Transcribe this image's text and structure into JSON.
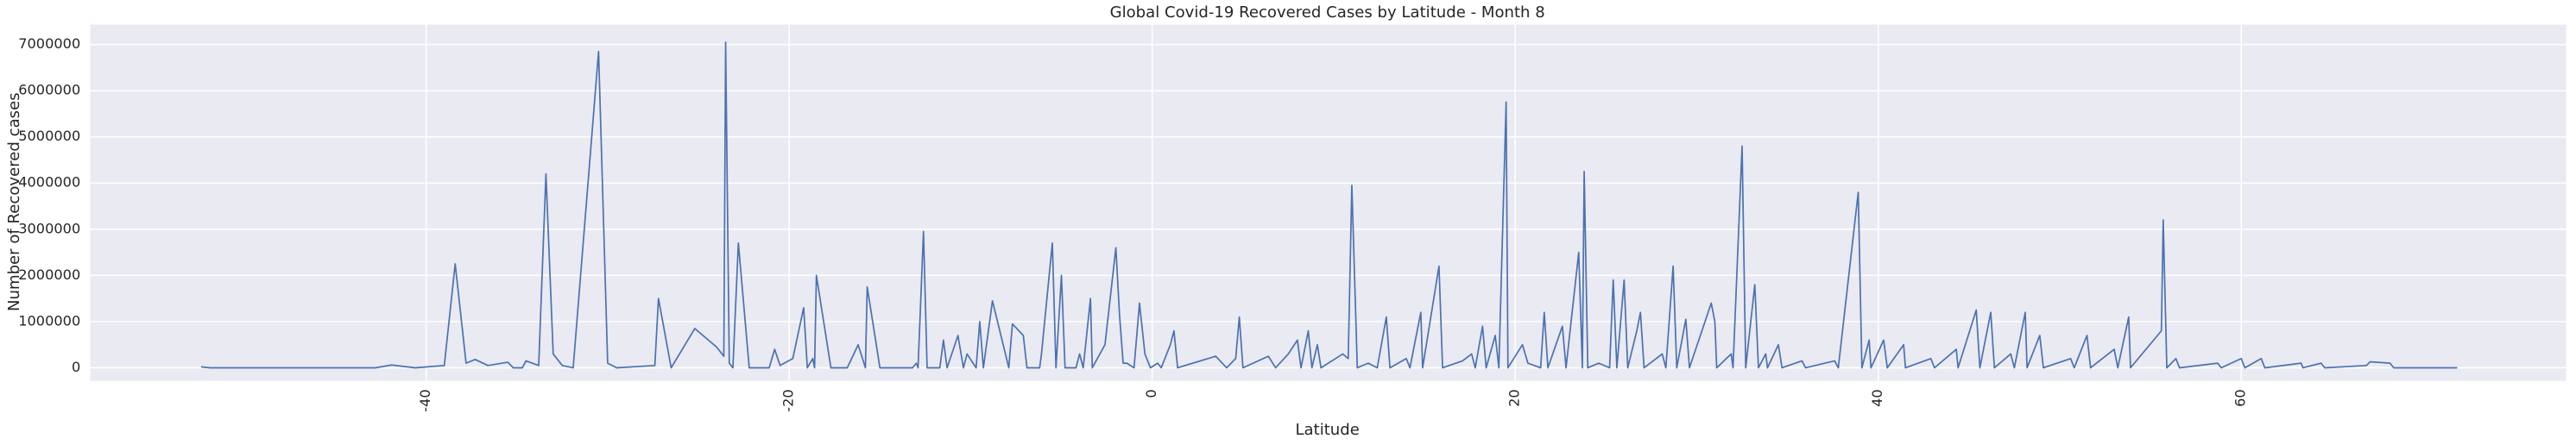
{
  "chart_data": {
    "type": "line",
    "title": "Global Covid-19 Recovered Cases by Latitude - Month 8",
    "x_label": "Latitude",
    "y_label": "Number of Recovered cases",
    "color": "#4c72b0",
    "grid": true,
    "xlim": [
      -58.5,
      77.9
    ],
    "ylim": [
      -285000,
      7430000
    ],
    "xticks": [
      -40,
      -20,
      0,
      20,
      40,
      60
    ],
    "yticks": [
      0,
      1000000,
      2000000,
      3000000,
      4000000,
      5000000,
      6000000,
      7000000
    ],
    "x": [
      -52.4,
      -51.9,
      -42.8,
      -41.9,
      -40.6,
      -39.0,
      -38.4,
      -37.8,
      -37.3,
      -36.6,
      -35.5,
      -35.2,
      -34.7,
      -34.5,
      -33.8,
      -33.4,
      -33.0,
      -32.5,
      -31.9,
      -30.5,
      -30.0,
      -29.5,
      -27.4,
      -27.2,
      -26.5,
      -25.2,
      -24.0,
      -23.6,
      -23.5,
      -23.3,
      -23.1,
      -22.8,
      -22.2,
      -21.1,
      -20.8,
      -20.5,
      -19.8,
      -19.2,
      -19.0,
      -18.7,
      -18.6,
      -18.5,
      -17.7,
      -16.8,
      -16.2,
      -15.8,
      -15.7,
      -15.0,
      -13.2,
      -13.0,
      -12.9,
      -12.6,
      -12.4,
      -11.7,
      -11.5,
      -11.3,
      -10.7,
      -10.4,
      -10.2,
      -9.7,
      -9.5,
      -9.3,
      -8.8,
      -7.9,
      -7.7,
      -7.1,
      -6.9,
      -6.2,
      -6.1,
      -5.5,
      -5.3,
      -5.0,
      -4.8,
      -4.2,
      -4.0,
      -3.8,
      -3.4,
      -3.3,
      -2.6,
      -2.0,
      -1.8,
      -1.6,
      -1.4,
      -1.0,
      -0.7,
      -0.4,
      -0.1,
      0.3,
      0.5,
      1.0,
      1.2,
      1.4,
      3.5,
      4.1,
      4.6,
      4.8,
      5.0,
      6.4,
      6.8,
      7.5,
      8.0,
      8.2,
      8.6,
      8.8,
      9.1,
      9.3,
      10.5,
      10.8,
      11.0,
      11.3,
      11.9,
      12.4,
      12.9,
      13.1,
      14.0,
      14.2,
      14.8,
      14.9,
      15.8,
      16.0,
      17.1,
      17.6,
      17.8,
      18.2,
      18.4,
      18.9,
      19.1,
      19.5,
      19.6,
      20.4,
      20.7,
      21.4,
      21.6,
      21.8,
      22.6,
      22.8,
      23.5,
      23.7,
      23.8,
      24.0,
      24.6,
      25.2,
      25.4,
      25.6,
      26.0,
      26.2,
      26.7,
      26.9,
      27.1,
      28.1,
      28.3,
      28.7,
      28.9,
      29.4,
      29.6,
      30.8,
      31.0,
      31.1,
      31.9,
      32.0,
      32.5,
      32.7,
      33.2,
      33.4,
      33.8,
      33.9,
      34.5,
      34.7,
      35.8,
      36.0,
      37.6,
      37.8,
      38.9,
      39.1,
      39.5,
      39.6,
      40.3,
      40.5,
      41.4,
      41.5,
      42.9,
      43.1,
      44.3,
      44.4,
      45.4,
      45.6,
      46.2,
      46.4,
      47.3,
      47.5,
      48.1,
      48.2,
      48.9,
      49.1,
      50.6,
      50.8,
      51.5,
      51.7,
      53.0,
      53.2,
      53.8,
      53.9,
      55.6,
      55.7,
      55.9,
      56.4,
      56.6,
      58.7,
      58.9,
      60.0,
      60.2,
      61.1,
      61.3,
      63.3,
      63.4,
      64.4,
      64.6,
      66.9,
      67.1,
      68.2,
      68.4,
      71.9
    ],
    "values": [
      20000,
      0,
      0,
      60000,
      0,
      50000,
      2250000,
      100000,
      180000,
      50000,
      120000,
      0,
      0,
      150000,
      50000,
      4200000,
      300000,
      50000,
      0,
      6850000,
      100000,
      0,
      50000,
      1500000,
      0,
      850000,
      450000,
      250000,
      7050000,
      100000,
      0,
      2700000,
      0,
      0,
      400000,
      50000,
      200000,
      1300000,
      0,
      200000,
      0,
      2000000,
      0,
      0,
      500000,
      0,
      1750000,
      0,
      0,
      100000,
      0,
      2950000,
      0,
      0,
      600000,
      0,
      700000,
      0,
      300000,
      0,
      1000000,
      0,
      1450000,
      0,
      950000,
      700000,
      0,
      0,
      300000,
      2700000,
      0,
      2000000,
      0,
      0,
      300000,
      0,
      1500000,
      0,
      500000,
      2600000,
      1150000,
      100000,
      100000,
      0,
      1400000,
      300000,
      0,
      100000,
      0,
      500000,
      800000,
      0,
      250000,
      0,
      200000,
      1100000,
      0,
      250000,
      0,
      300000,
      600000,
      0,
      800000,
      0,
      500000,
      0,
      300000,
      200000,
      3950000,
      0,
      100000,
      0,
      1100000,
      0,
      200000,
      0,
      1200000,
      0,
      2200000,
      0,
      150000,
      300000,
      0,
      900000,
      0,
      700000,
      0,
      5750000,
      0,
      500000,
      100000,
      0,
      1200000,
      0,
      900000,
      0,
      2500000,
      0,
      4250000,
      0,
      100000,
      0,
      1900000,
      0,
      1900000,
      0,
      800000,
      1200000,
      0,
      300000,
      0,
      2200000,
      0,
      1050000,
      0,
      1400000,
      1000000,
      0,
      300000,
      0,
      4800000,
      0,
      1800000,
      0,
      300000,
      0,
      500000,
      0,
      150000,
      0,
      150000,
      0,
      3800000,
      0,
      600000,
      0,
      600000,
      0,
      500000,
      0,
      200000,
      0,
      400000,
      0,
      1250000,
      0,
      1200000,
      0,
      300000,
      0,
      1200000,
      0,
      700000,
      0,
      200000,
      0,
      700000,
      0,
      400000,
      0,
      1100000,
      0,
      800000,
      3200000,
      0,
      200000,
      0,
      100000,
      0,
      200000,
      0,
      200000,
      0,
      100000,
      0,
      100000,
      0,
      50000,
      130000,
      100000,
      0,
      0
    ]
  }
}
